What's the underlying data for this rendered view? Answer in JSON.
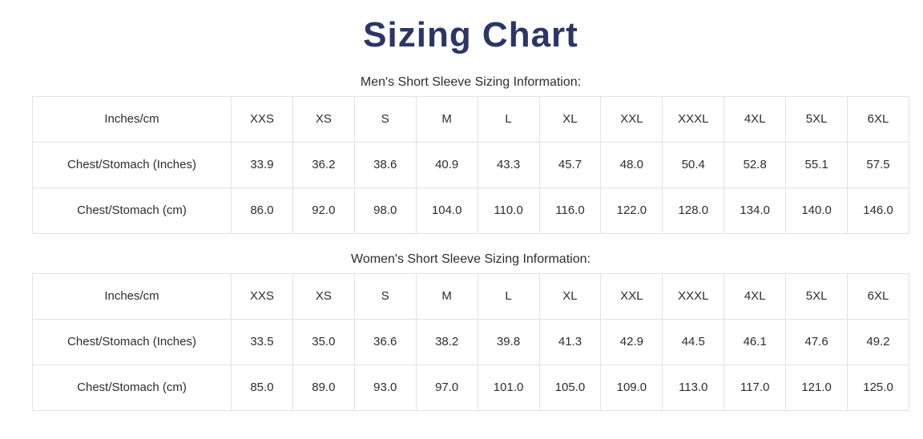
{
  "colors": {
    "title": "#2b3566",
    "text": "#2d2d2d",
    "border": "#e2e2e2"
  },
  "page": {
    "title": "Sizing Chart"
  },
  "tables": [
    {
      "caption": "Men's Short Sleeve Sizing Information:",
      "columns": [
        "Inches/cm",
        "XXS",
        "XS",
        "S",
        "M",
        "L",
        "XL",
        "XXL",
        "XXXL",
        "4XL",
        "5XL",
        "6XL"
      ],
      "rows": [
        {
          "label": "Chest/Stomach (Inches)",
          "values": [
            "33.9",
            "36.2",
            "38.6",
            "40.9",
            "43.3",
            "45.7",
            "48.0",
            "50.4",
            "52.8",
            "55.1",
            "57.5"
          ]
        },
        {
          "label": "Chest/Stomach (cm)",
          "values": [
            "86.0",
            "92.0",
            "98.0",
            "104.0",
            "110.0",
            "116.0",
            "122.0",
            "128.0",
            "134.0",
            "140.0",
            "146.0"
          ]
        }
      ]
    },
    {
      "caption": "Women's Short Sleeve Sizing Information:",
      "columns": [
        "Inches/cm",
        "XXS",
        "XS",
        "S",
        "M",
        "L",
        "XL",
        "XXL",
        "XXXL",
        "4XL",
        "5XL",
        "6XL"
      ],
      "rows": [
        {
          "label": "Chest/Stomach (Inches)",
          "values": [
            "33.5",
            "35.0",
            "36.6",
            "38.2",
            "39.8",
            "41.3",
            "42.9",
            "44.5",
            "46.1",
            "47.6",
            "49.2"
          ]
        },
        {
          "label": "Chest/Stomach (cm)",
          "values": [
            "85.0",
            "89.0",
            "93.0",
            "97.0",
            "101.0",
            "105.0",
            "109.0",
            "113.0",
            "117.0",
            "121.0",
            "125.0"
          ]
        }
      ]
    }
  ]
}
